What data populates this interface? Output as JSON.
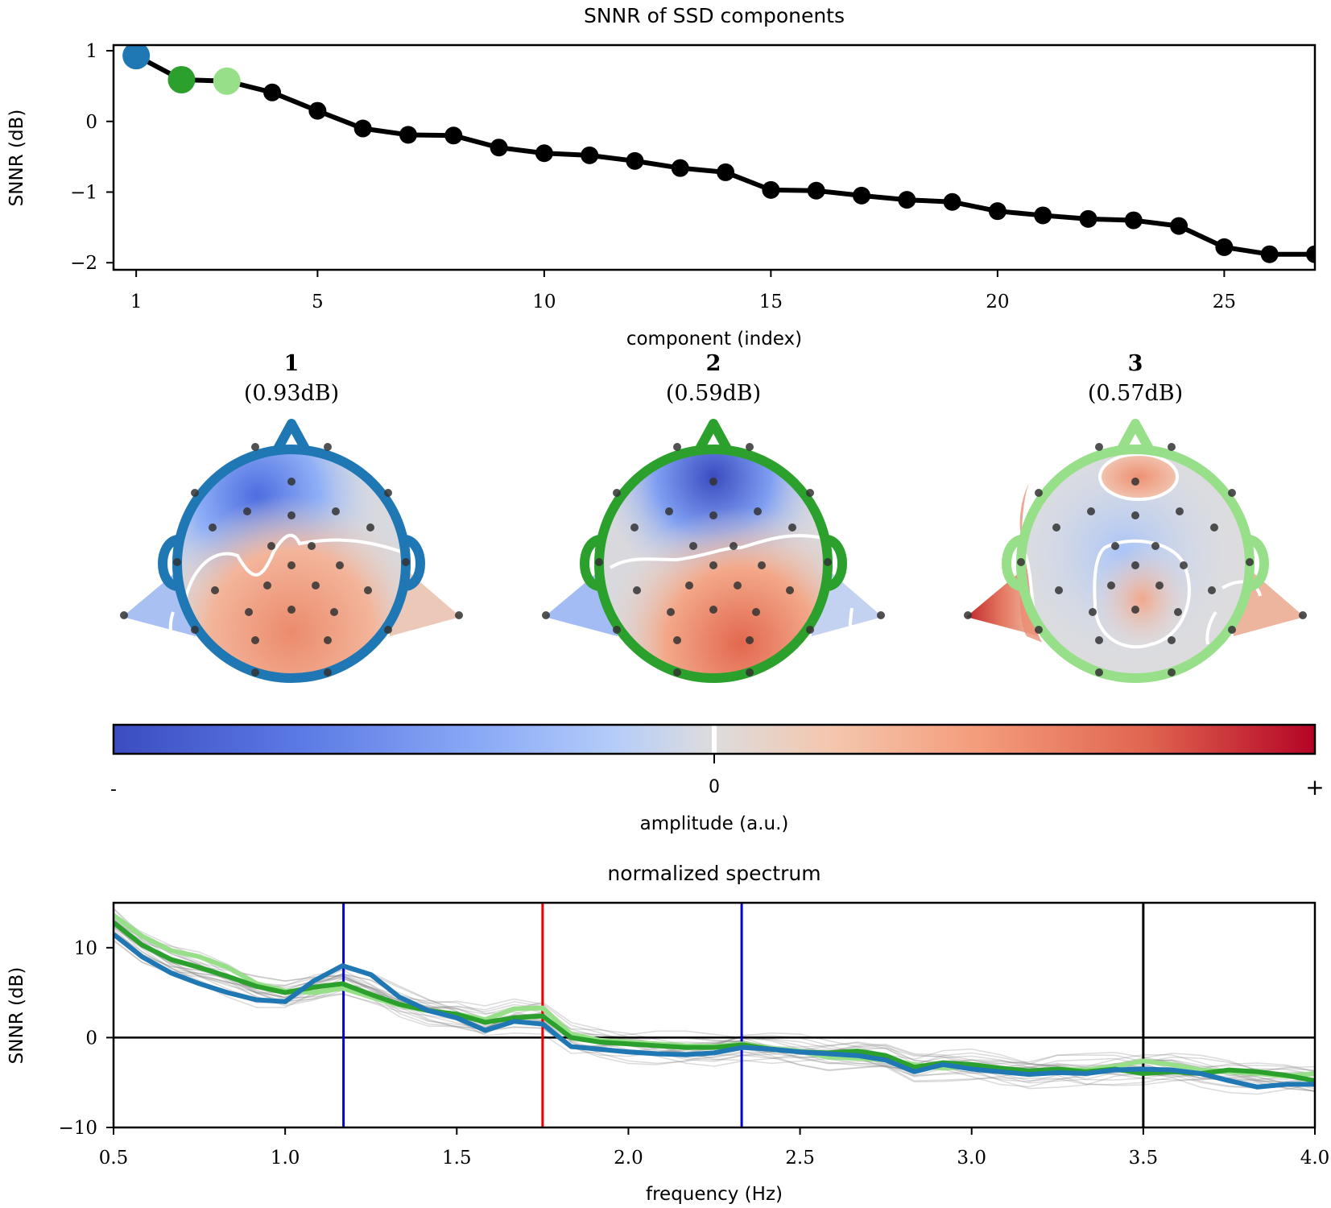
{
  "chart_data": [
    {
      "type": "line",
      "title": "SNNR of SSD components",
      "xlabel": "component (index)",
      "ylabel": "SNNR (dB)",
      "xlim": [
        0.5,
        27
      ],
      "ylim": [
        -2.1,
        1.08
      ],
      "xticks": [
        1,
        5,
        10,
        15,
        20,
        25
      ],
      "xtick_labels": [
        "1",
        "5",
        "10",
        "15",
        "20",
        "25"
      ],
      "yticks": [
        1,
        0,
        -1,
        -2
      ],
      "ytick_labels": [
        "1",
        "0",
        "−1",
        "−2"
      ],
      "grid": false,
      "series": [
        {
          "color": "#000000",
          "x": [
            1,
            2,
            3,
            4,
            5,
            6,
            7,
            8,
            9,
            10,
            11,
            12,
            13,
            14,
            15,
            16,
            17,
            18,
            19,
            20,
            21,
            22,
            23,
            24,
            25,
            26,
            27
          ],
          "values": [
            0.93,
            0.59,
            0.57,
            0.41,
            0.15,
            -0.1,
            -0.19,
            -0.2,
            -0.37,
            -0.45,
            -0.48,
            -0.56,
            -0.66,
            -0.72,
            -0.97,
            -0.98,
            -1.05,
            -1.11,
            -1.14,
            -1.27,
            -1.33,
            -1.38,
            -1.4,
            -1.48,
            -1.78,
            -1.88,
            -1.88
          ]
        }
      ],
      "highlights": [
        {
          "x": 1,
          "value": 0.93,
          "color": "#1f77b4"
        },
        {
          "x": 2,
          "value": 0.59,
          "color": "#2ca02c"
        },
        {
          "x": 3,
          "value": 0.57,
          "color": "#98df8a"
        }
      ]
    },
    {
      "type": "heatmap",
      "subtype": "topomap",
      "colormap": "coolwarm",
      "maps": [
        {
          "label": "1",
          "value_label": "(0.93dB)",
          "color": "#1f77b4"
        },
        {
          "label": "2",
          "value_label": "(0.59dB)",
          "color": "#2ca02c"
        },
        {
          "label": "3",
          "value_label": "(0.57dB)",
          "color": "#98df8a"
        }
      ],
      "colorbar": {
        "label": "amplitude (a.u.)",
        "tick_labels": [
          "-",
          "0",
          "+"
        ]
      }
    },
    {
      "type": "line",
      "title": "normalized spectrum",
      "xlabel": "frequency (Hz)",
      "ylabel": "SNNR (dB)",
      "xlim": [
        0.5,
        4.0
      ],
      "ylim": [
        -10,
        15
      ],
      "xticks": [
        0.5,
        1.0,
        1.5,
        2.0,
        2.5,
        3.0,
        3.5,
        4.0
      ],
      "xtick_labels": [
        "0.5",
        "1.0",
        "1.5",
        "2.0",
        "2.5",
        "3.0",
        "3.5",
        "4.0"
      ],
      "yticks": [
        10,
        0,
        -10
      ],
      "ytick_labels": [
        "10",
        "0",
        "−10"
      ],
      "grid": false,
      "vlines": [
        {
          "x": 1.17,
          "color": "#0000dd"
        },
        {
          "x": 1.75,
          "color": "#ee0000"
        },
        {
          "x": 2.33,
          "color": "#0000dd"
        },
        {
          "x": 3.5,
          "color": "#000000"
        }
      ],
      "hlines": [
        {
          "y": 0,
          "color": "#000000"
        }
      ],
      "x": [
        0.5,
        0.583,
        0.667,
        0.75,
        0.833,
        0.917,
        1.0,
        1.083,
        1.167,
        1.25,
        1.333,
        1.417,
        1.5,
        1.583,
        1.667,
        1.75,
        1.833,
        1.917,
        2.0,
        2.083,
        2.167,
        2.25,
        2.333,
        2.417,
        2.5,
        2.583,
        2.667,
        2.75,
        2.833,
        2.917,
        3.0,
        3.083,
        3.167,
        3.25,
        3.333,
        3.417,
        3.5,
        3.583,
        3.667,
        3.75,
        3.833,
        3.917,
        4.0
      ],
      "series": [
        {
          "color": "#1f77b4",
          "values": [
            11.5,
            9.0,
            7.2,
            6.0,
            5.0,
            4.2,
            4.0,
            6.3,
            8.0,
            7.0,
            4.5,
            3.0,
            2.2,
            0.8,
            1.8,
            1.5,
            -1.0,
            -1.3,
            -1.6,
            -1.8,
            -1.9,
            -1.7,
            -1.1,
            -1.3,
            -1.6,
            -1.8,
            -2.0,
            -2.5,
            -3.8,
            -3.0,
            -3.5,
            -3.8,
            -4.1,
            -3.9,
            -4.0,
            -3.6,
            -3.5,
            -3.6,
            -4.0,
            -4.8,
            -5.5,
            -5.2,
            -5.2
          ]
        },
        {
          "color": "#2ca02c",
          "values": [
            12.8,
            10.3,
            8.7,
            7.8,
            6.8,
            5.7,
            5.0,
            5.6,
            6.0,
            4.8,
            3.7,
            3.0,
            2.6,
            1.7,
            2.2,
            2.4,
            0.0,
            -0.5,
            -0.7,
            -0.9,
            -1.1,
            -1.1,
            -0.8,
            -1.3,
            -1.6,
            -1.7,
            -1.5,
            -2.0,
            -3.3,
            -2.8,
            -3.0,
            -3.4,
            -3.7,
            -3.5,
            -3.8,
            -3.5,
            -4.0,
            -3.8,
            -4.0,
            -3.6,
            -3.8,
            -4.2,
            -4.8
          ]
        },
        {
          "color": "#98df8a",
          "values": [
            13.6,
            11.3,
            9.7,
            9.0,
            7.8,
            6.0,
            5.2,
            5.0,
            5.5,
            4.5,
            3.6,
            3.0,
            2.6,
            2.0,
            3.2,
            3.3,
            0.4,
            -0.3,
            -0.5,
            -0.7,
            -0.9,
            -1.0,
            -0.7,
            -1.2,
            -1.5,
            -2.2,
            -2.3,
            -2.5,
            -3.0,
            -3.4,
            -3.2,
            -3.6,
            -3.8,
            -3.5,
            -3.6,
            -3.2,
            -2.6,
            -3.0,
            -3.6,
            -3.8,
            -4.0,
            -4.3,
            -4.0
          ]
        }
      ]
    }
  ]
}
